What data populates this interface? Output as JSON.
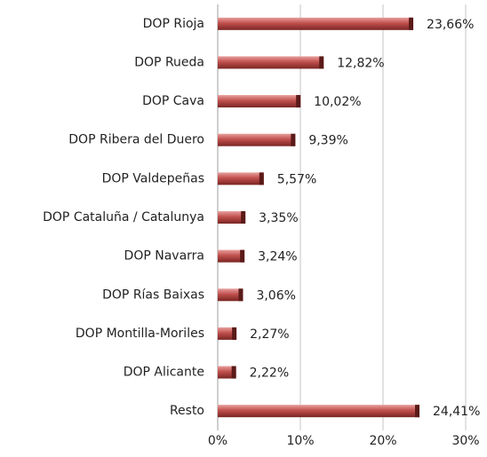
{
  "chart_data": {
    "type": "bar",
    "orientation": "horizontal",
    "categories": [
      "DOP Rioja",
      "DOP Rueda",
      "DOP Cava",
      "DOP Ribera del Duero",
      "DOP Valdepeñas",
      "DOP Cataluña / Catalunya",
      "DOP Navarra",
      "DOP Rías Baixas",
      "DOP Montilla-Moriles",
      "DOP Alicante",
      "Resto"
    ],
    "values": [
      23.66,
      12.82,
      10.02,
      9.39,
      5.57,
      3.35,
      3.24,
      3.06,
      2.27,
      2.22,
      24.41
    ],
    "value_labels": [
      "23,66%",
      "12,82%",
      "10,02%",
      "9,39%",
      "5,57%",
      "3,35%",
      "3,24%",
      "3,06%",
      "2,27%",
      "2,22%",
      "24,41%"
    ],
    "color": "#c0504d",
    "xlim": [
      0,
      30
    ],
    "xticks": [
      {
        "value": 0,
        "label": "0%"
      },
      {
        "value": 10,
        "label": "10%"
      },
      {
        "value": 20,
        "label": "20%"
      },
      {
        "value": 30,
        "label": "30%"
      }
    ],
    "grid": true
  }
}
